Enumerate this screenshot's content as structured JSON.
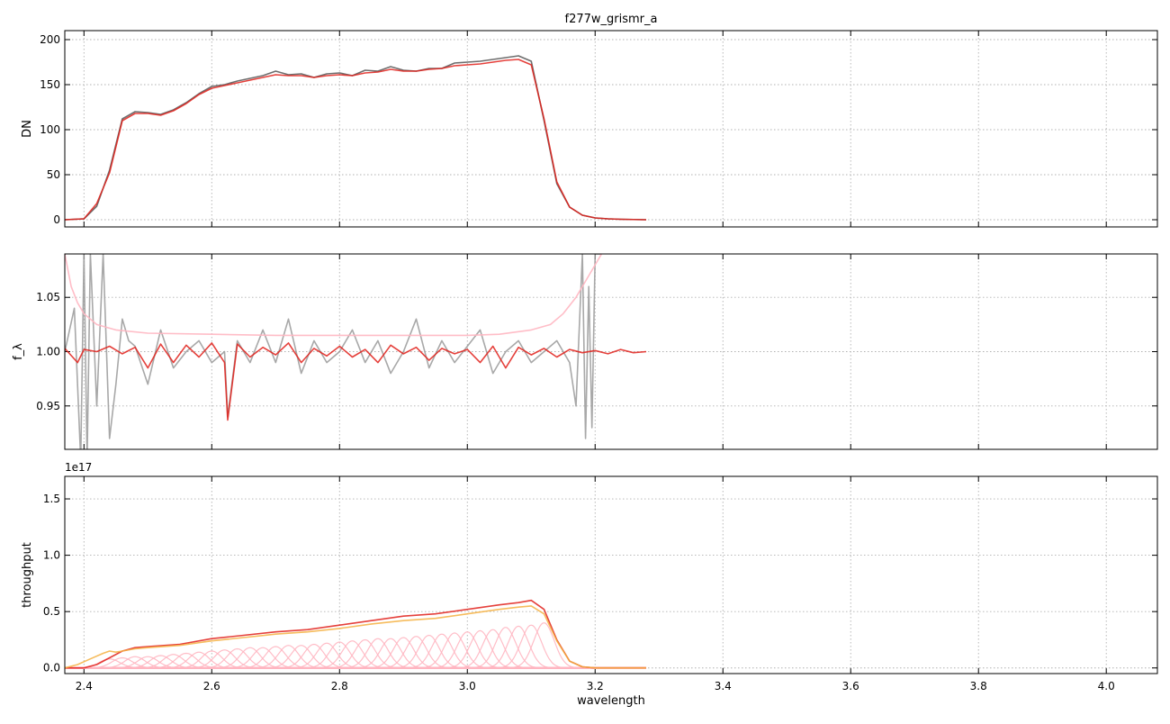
{
  "figure_title": "f277w_grismr_a",
  "xlabel": "wavelength",
  "x_ticks": [
    2.4,
    2.6,
    2.8,
    3.0,
    3.2,
    3.4,
    3.6,
    3.8,
    4.0
  ],
  "colors": {
    "data": "#555555",
    "model": "#e0201a",
    "model_light": "#f08080",
    "pink": "#ffb6c1",
    "orange": "#f5b041",
    "grid": "#b0b0b0"
  },
  "chart_data": [
    {
      "type": "line",
      "ylabel": "DN",
      "xlim": [
        2.37,
        4.08
      ],
      "ylim": [
        -8,
        210
      ],
      "y_ticks": [
        0,
        50,
        100,
        150,
        200
      ],
      "grid": true,
      "series": [
        {
          "color": "#555555",
          "x": [
            2.37,
            2.4,
            2.42,
            2.44,
            2.46,
            2.48,
            2.5,
            2.52,
            2.54,
            2.56,
            2.58,
            2.6,
            2.62,
            2.64,
            2.66,
            2.68,
            2.7,
            2.72,
            2.74,
            2.76,
            2.78,
            2.8,
            2.82,
            2.84,
            2.86,
            2.88,
            2.9,
            2.92,
            2.94,
            2.96,
            2.98,
            3.0,
            3.02,
            3.04,
            3.06,
            3.08,
            3.1,
            3.12,
            3.14,
            3.16,
            3.18,
            3.2,
            3.22,
            3.24,
            3.28
          ],
          "y": [
            0,
            1,
            15,
            55,
            112,
            120,
            119,
            117,
            122,
            130,
            140,
            148,
            150,
            154,
            157,
            160,
            165,
            161,
            162,
            158,
            162,
            163,
            160,
            166,
            165,
            170,
            166,
            165,
            168,
            168,
            174,
            175,
            176,
            178,
            180,
            182,
            176,
            110,
            40,
            14,
            5,
            2,
            1,
            0.5,
            0
          ]
        },
        {
          "color": "#e0201a",
          "x": [
            2.37,
            2.4,
            2.42,
            2.44,
            2.46,
            2.48,
            2.5,
            2.52,
            2.54,
            2.56,
            2.58,
            2.6,
            2.62,
            2.64,
            2.66,
            2.68,
            2.7,
            2.72,
            2.74,
            2.76,
            2.78,
            2.8,
            2.82,
            2.84,
            2.86,
            2.88,
            2.9,
            2.92,
            2.94,
            2.96,
            2.98,
            3.0,
            3.02,
            3.04,
            3.06,
            3.08,
            3.1,
            3.12,
            3.14,
            3.16,
            3.18,
            3.2,
            3.22,
            3.24,
            3.28
          ],
          "y": [
            0,
            1,
            18,
            52,
            110,
            118,
            118,
            116,
            121,
            129,
            139,
            146,
            149,
            152,
            155,
            158,
            161,
            160,
            160,
            158,
            160,
            161,
            160,
            163,
            164,
            167,
            165,
            165,
            167,
            168,
            171,
            172,
            173,
            175,
            177,
            178,
            172,
            112,
            42,
            14,
            5,
            2,
            1,
            0.5,
            0
          ]
        }
      ]
    },
    {
      "type": "line",
      "ylabel": "f_λ",
      "xlim": [
        2.37,
        4.08
      ],
      "ylim": [
        0.91,
        1.09
      ],
      "y_ticks": [
        0.95,
        1.0,
        1.05
      ],
      "y_tick_labels": [
        "0.95",
        "1.00",
        "1.05"
      ],
      "grid": true,
      "series": [
        {
          "color": "#999999",
          "x": [
            2.37,
            2.385,
            2.395,
            2.4,
            2.405,
            2.41,
            2.42,
            2.43,
            2.44,
            2.45,
            2.46,
            2.47,
            2.48,
            2.5,
            2.52,
            2.54,
            2.56,
            2.58,
            2.6,
            2.62,
            2.625,
            2.64,
            2.66,
            2.68,
            2.7,
            2.72,
            2.74,
            2.76,
            2.78,
            2.8,
            2.82,
            2.84,
            2.86,
            2.88,
            2.9,
            2.92,
            2.94,
            2.96,
            2.98,
            3.0,
            3.02,
            3.04,
            3.06,
            3.08,
            3.1,
            3.12,
            3.14,
            3.16,
            3.17,
            3.18,
            3.185,
            3.19,
            3.195,
            3.2,
            3.21
          ],
          "y": [
            1.0,
            1.04,
            0.9,
            1.09,
            0.9,
            1.09,
            0.95,
            1.09,
            0.92,
            0.97,
            1.03,
            1.01,
            1.005,
            0.97,
            1.02,
            0.985,
            1.0,
            1.01,
            0.99,
            1.0,
            0.94,
            1.01,
            0.99,
            1.02,
            0.99,
            1.03,
            0.98,
            1.01,
            0.99,
            1.0,
            1.02,
            0.99,
            1.01,
            0.98,
            1.0,
            1.03,
            0.985,
            1.01,
            0.99,
            1.005,
            1.02,
            0.98,
            1.0,
            1.01,
            0.99,
            1.0,
            1.01,
            0.99,
            0.95,
            1.09,
            0.92,
            1.06,
            0.93,
            1.09,
            1.09
          ]
        },
        {
          "color": "#e0201a",
          "x": [
            2.37,
            2.39,
            2.4,
            2.42,
            2.44,
            2.46,
            2.48,
            2.5,
            2.52,
            2.54,
            2.56,
            2.58,
            2.6,
            2.62,
            2.625,
            2.64,
            2.66,
            2.68,
            2.7,
            2.72,
            2.74,
            2.76,
            2.78,
            2.8,
            2.82,
            2.84,
            2.86,
            2.88,
            2.9,
            2.92,
            2.94,
            2.96,
            2.98,
            3.0,
            3.02,
            3.04,
            3.06,
            3.08,
            3.1,
            3.12,
            3.14,
            3.16,
            3.18,
            3.2,
            3.22,
            3.24,
            3.26,
            3.28
          ],
          "y": [
            1.003,
            0.99,
            1.002,
            1.0,
            1.005,
            0.998,
            1.004,
            0.985,
            1.007,
            0.99,
            1.006,
            0.995,
            1.008,
            0.99,
            0.937,
            1.007,
            0.995,
            1.004,
            0.997,
            1.008,
            0.99,
            1.003,
            0.996,
            1.005,
            0.995,
            1.002,
            0.99,
            1.006,
            0.998,
            1.004,
            0.992,
            1.003,
            0.998,
            1.002,
            0.99,
            1.005,
            0.985,
            1.004,
            0.997,
            1.003,
            0.995,
            1.002,
            0.999,
            1.001,
            0.998,
            1.002,
            0.999,
            1.0
          ]
        },
        {
          "color": "#ffb6c1",
          "x": [
            2.37,
            2.38,
            2.39,
            2.4,
            2.42,
            2.45,
            2.5,
            2.6,
            2.7,
            2.8,
            2.9,
            3.0,
            3.05,
            3.1,
            3.13,
            3.15,
            3.17,
            3.19,
            3.21
          ],
          "y": [
            1.09,
            1.06,
            1.045,
            1.035,
            1.025,
            1.02,
            1.017,
            1.016,
            1.015,
            1.015,
            1.015,
            1.015,
            1.016,
            1.02,
            1.025,
            1.035,
            1.05,
            1.07,
            1.09
          ]
        }
      ]
    },
    {
      "type": "line",
      "ylabel": "throughput",
      "scale_label": "1e17",
      "xlim": [
        2.37,
        4.08
      ],
      "ylim": [
        -0.05,
        1.7
      ],
      "y_ticks": [
        0.0,
        0.5,
        1.0,
        1.5
      ],
      "y_tick_labels": [
        "0.0",
        "0.5",
        "1.0",
        "1.5"
      ],
      "grid": true,
      "series": [
        {
          "color": "#e0201a",
          "x": [
            2.37,
            2.4,
            2.42,
            2.44,
            2.46,
            2.48,
            2.5,
            2.55,
            2.6,
            2.65,
            2.7,
            2.75,
            2.8,
            2.85,
            2.9,
            2.95,
            3.0,
            3.05,
            3.08,
            3.1,
            3.12,
            3.14,
            3.16,
            3.18,
            3.2,
            3.28
          ],
          "y": [
            0.0,
            0.0,
            0.03,
            0.09,
            0.15,
            0.18,
            0.19,
            0.21,
            0.26,
            0.29,
            0.32,
            0.34,
            0.38,
            0.42,
            0.46,
            0.48,
            0.52,
            0.56,
            0.58,
            0.6,
            0.52,
            0.25,
            0.06,
            0.01,
            0.0,
            0.0
          ]
        },
        {
          "color": "#f5b041",
          "x": [
            2.37,
            2.39,
            2.41,
            2.43,
            2.44,
            2.45,
            2.46,
            2.48,
            2.5,
            2.55,
            2.6,
            2.65,
            2.7,
            2.75,
            2.8,
            2.85,
            2.9,
            2.95,
            3.0,
            3.05,
            3.08,
            3.1,
            3.12,
            3.14,
            3.16,
            3.18,
            3.2,
            3.28
          ],
          "y": [
            0.0,
            0.03,
            0.08,
            0.13,
            0.15,
            0.14,
            0.15,
            0.17,
            0.18,
            0.2,
            0.24,
            0.27,
            0.3,
            0.32,
            0.35,
            0.39,
            0.42,
            0.44,
            0.48,
            0.52,
            0.54,
            0.55,
            0.48,
            0.24,
            0.06,
            0.01,
            0.0,
            0.0
          ]
        }
      ],
      "components": {
        "color": "#ffb6c1",
        "center_start": 2.44,
        "center_step": 0.02,
        "count": 35,
        "sigma": 0.016,
        "peaks": [
          0.08,
          0.09,
          0.1,
          0.1,
          0.11,
          0.12,
          0.13,
          0.14,
          0.15,
          0.16,
          0.17,
          0.18,
          0.18,
          0.19,
          0.2,
          0.2,
          0.21,
          0.22,
          0.23,
          0.24,
          0.25,
          0.26,
          0.26,
          0.27,
          0.28,
          0.29,
          0.3,
          0.31,
          0.32,
          0.33,
          0.34,
          0.36,
          0.37,
          0.38,
          0.4
        ]
      }
    }
  ]
}
